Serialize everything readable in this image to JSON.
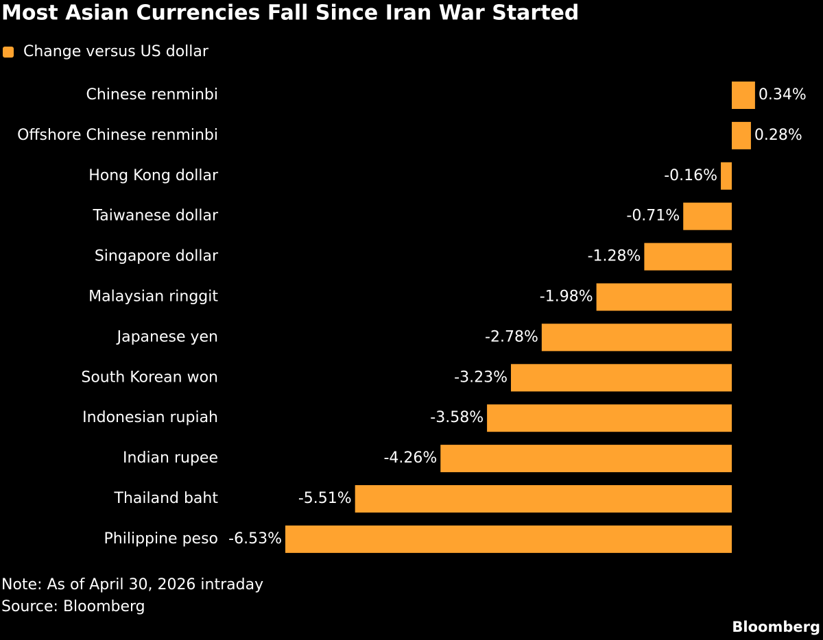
{
  "chart_data": {
    "type": "hbar",
    "title": "Most Asian Currencies Fall Since Iran War Started",
    "categories": [
      "Chinese renminbi",
      "Offshore Chinese renminbi",
      "Hong Kong dollar",
      "Taiwanese dollar",
      "Singapore dollar",
      "Malaysian ringgit",
      "Japanese yen",
      "South Korean won",
      "Indonesian rupiah",
      "Indian rupee",
      "Thailand baht",
      "Philippine peso"
    ],
    "series": [
      {
        "name": "Change versus US dollar",
        "color": "#ffa32f",
        "values": [
          0.34,
          0.28,
          -0.16,
          -0.71,
          -1.28,
          -1.98,
          -2.78,
          -3.23,
          -3.58,
          -4.26,
          -5.51,
          -6.53
        ],
        "value_labels": [
          "0.34%",
          "0.28%",
          "-0.16%",
          "-0.71%",
          "-1.28%",
          "-1.98%",
          "-2.78%",
          "-3.23%",
          "-3.58%",
          "-4.26%",
          "-5.51%",
          "-6.53%"
        ]
      }
    ],
    "note": "Note: As of April 30, 2026 intraday",
    "source": "Source: Bloomberg",
    "logo": "Bloomberg"
  }
}
